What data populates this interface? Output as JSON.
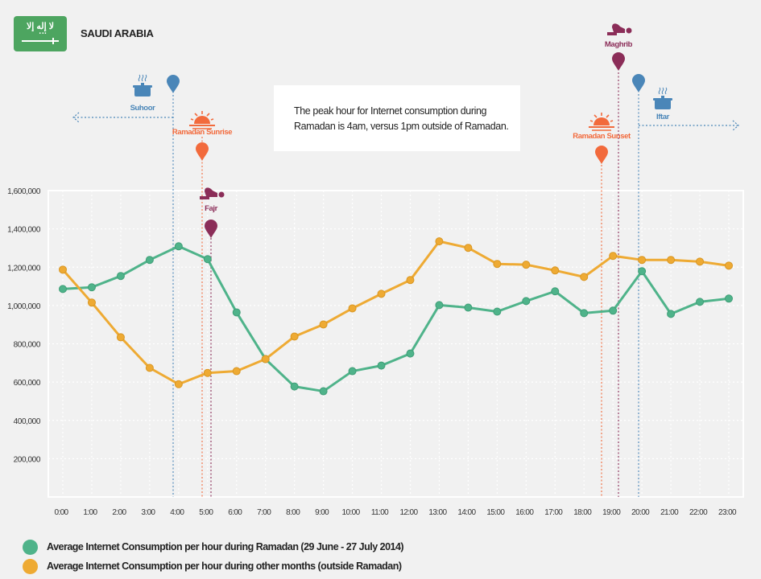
{
  "header": {
    "flag_icon": "saudi-arabia-flag-icon",
    "flag_script": "لا إله إلا الله",
    "country": "SAUDI ARABIA"
  },
  "note": {
    "line1": "The peak hour for Internet consumption during",
    "line2": "Ramadan is 4am, versus 1pm outside of Ramadan."
  },
  "colors": {
    "ramadan": "#4fb38a",
    "outside": "#eeaa33",
    "suhoor_iftar": "#4a86b8",
    "sun": "#f26a3c",
    "prayer": "#8b2d58",
    "background": "#f1f1f1",
    "flag": "#4da560"
  },
  "events": [
    {
      "name": "Suhoor",
      "hour": 3.8,
      "icon": "cooking-pot-icon",
      "color_key": "suhoor_iftar",
      "arrow": "left"
    },
    {
      "name": "Ramadan Sunrise",
      "hour": 4.8,
      "icon": "sunrise-icon",
      "color_key": "sun"
    },
    {
      "name": "Fajr",
      "hour": 5.1,
      "icon": "prayer-icon",
      "color_key": "prayer"
    },
    {
      "name": "Ramadan Sunset",
      "hour": 18.6,
      "icon": "sunset-icon",
      "color_key": "sun"
    },
    {
      "name": "Maghrib",
      "hour": 19.2,
      "icon": "prayer-icon",
      "color_key": "prayer"
    },
    {
      "name": "Iftar",
      "hour": 19.9,
      "icon": "cooking-pot-icon",
      "color_key": "suhoor_iftar",
      "arrow": "right"
    }
  ],
  "legend": [
    {
      "label": "Average Internet Consumption per hour during Ramadan (29 June - 27 July 2014)",
      "color_key": "ramadan"
    },
    {
      "label": "Average Internet Consumption per hour during other months (outside Ramadan)",
      "color_key": "outside"
    }
  ],
  "chart_data": {
    "type": "line",
    "title": "",
    "xlabel": "",
    "ylabel": "",
    "categories": [
      "0:00",
      "1:00",
      "2:00",
      "3:00",
      "4:00",
      "5:00",
      "6:00",
      "7:00",
      "8:00",
      "9:00",
      "10:00",
      "11:00",
      "12:00",
      "13:00",
      "14:00",
      "15:00",
      "16:00",
      "17:00",
      "18:00",
      "19:00",
      "20:00",
      "21:00",
      "22:00",
      "23:00"
    ],
    "yticks": [
      200000,
      400000,
      600000,
      800000,
      1000000,
      1200000,
      1400000,
      1600000
    ],
    "ytick_labels": [
      "200,000",
      "400,000",
      "600,000",
      "800,000",
      "1,000,000",
      "1,200,000",
      "1,400,000",
      "1,600,000"
    ],
    "ylim": [
      0,
      1600000
    ],
    "grid": true,
    "legend_position": "bottom-left",
    "series": [
      {
        "name": "Average Internet Consumption per hour during Ramadan (29 June - 27 July 2014)",
        "color_key": "ramadan",
        "values": [
          1086000,
          1095000,
          1154000,
          1238000,
          1309000,
          1242000,
          964000,
          720000,
          577000,
          552000,
          657000,
          686000,
          749000,
          1002000,
          989000,
          968000,
          1023000,
          1074000,
          960000,
          973000,
          1179000,
          956000,
          1019000,
          1036000
        ]
      },
      {
        "name": "Average Internet Consumption per hour during other months (outside Ramadan)",
        "color_key": "outside",
        "values": [
          1187000,
          1015000,
          834000,
          674000,
          589000,
          648000,
          657000,
          720000,
          838000,
          901000,
          985000,
          1061000,
          1133000,
          1335000,
          1301000,
          1217000,
          1213000,
          1183000,
          1149000,
          1259000,
          1238000,
          1238000,
          1229000,
          1208000
        ]
      }
    ]
  }
}
